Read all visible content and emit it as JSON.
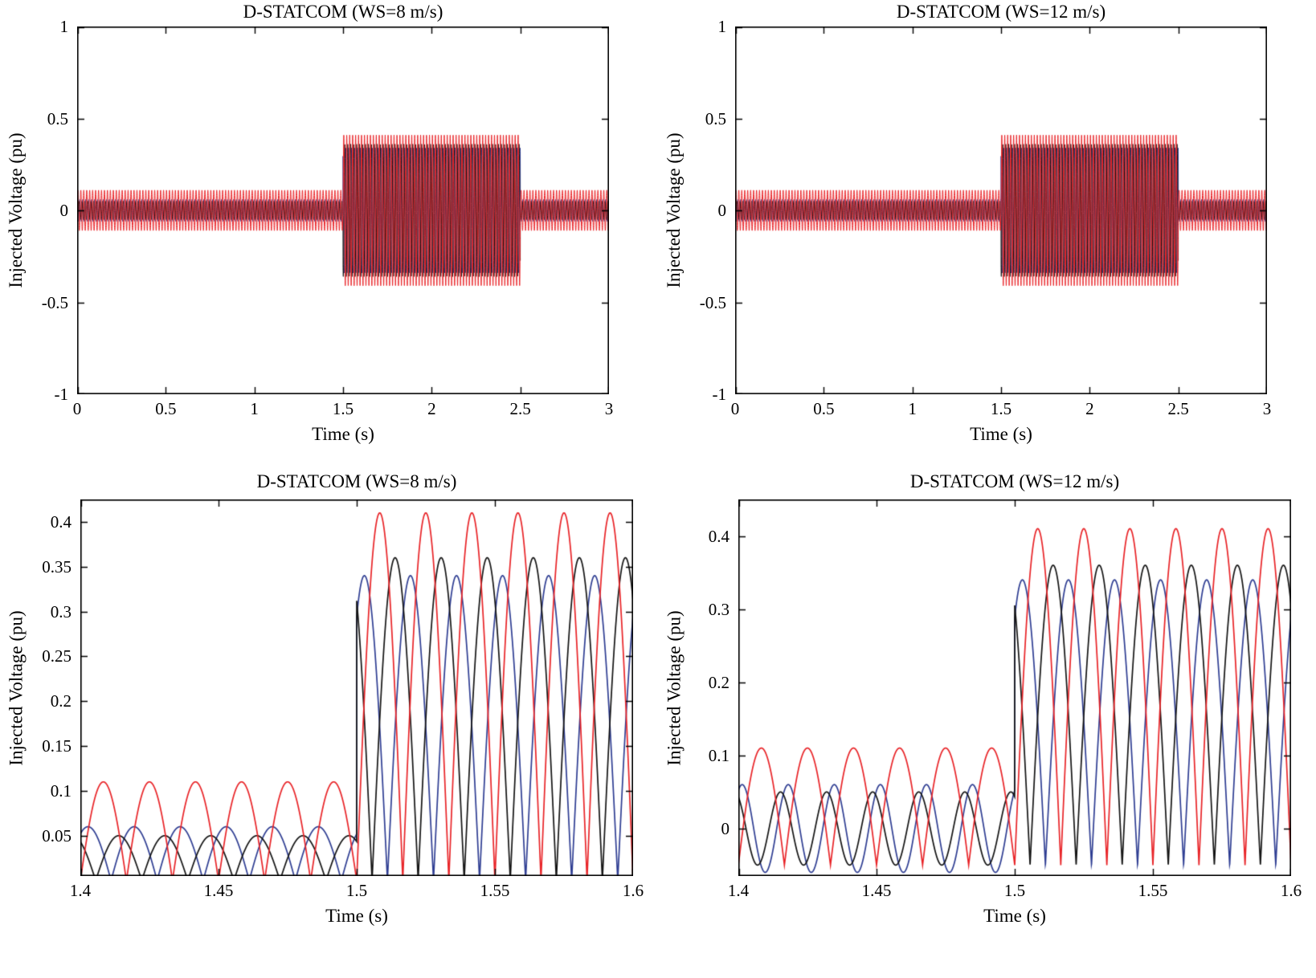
{
  "figure": {
    "background": "#ffffff",
    "text_color": "#000000",
    "frame_color": "#000000"
  },
  "colors": {
    "phase_a_red": "#e82327",
    "phase_b_blue": "#2e3d92",
    "phase_c_black": "#131313"
  },
  "chart_data": [
    {
      "id": "ws8-full",
      "type": "line",
      "title": "D-STATCOM (WS=8 m/s)",
      "xlabel": "Time (s)",
      "ylabel": "Injected Voltage (pu)",
      "xlim": [
        0,
        3
      ],
      "ylim": [
        -1,
        1
      ],
      "xticks": [
        0,
        0.5,
        1,
        1.5,
        2,
        2.5,
        3
      ],
      "xtick_labels": [
        "0",
        "0.5",
        "1",
        "1.5",
        "2",
        "2.5",
        "3"
      ],
      "yticks": [
        -1,
        -0.5,
        0,
        0.5,
        1
      ],
      "ytick_labels": [
        "-1",
        "-0.5",
        "0",
        "0.5",
        "1"
      ],
      "grid": false,
      "legend": null,
      "series": [
        {
          "name": "phase-b-blue",
          "color": "#2e3d92",
          "waveform": "sin",
          "freq": 60,
          "phase": 2.094,
          "line_width": 1,
          "segments": [
            {
              "t0": 0.0,
              "t1": 1.5,
              "amp": 0.06,
              "base": 0
            },
            {
              "t0": 1.5,
              "t1": 2.5,
              "amp": 0.34,
              "base": 0
            },
            {
              "t0": 2.5,
              "t1": 3.001,
              "amp": 0.06,
              "base": 0
            }
          ]
        },
        {
          "name": "phase-c-black",
          "color": "#131313",
          "waveform": "sin",
          "freq": 60,
          "phase": 4.189,
          "line_width": 1,
          "segments": [
            {
              "t0": 0.0,
              "t1": 1.5,
              "amp": 0.05,
              "base": 0
            },
            {
              "t0": 1.5,
              "t1": 2.5,
              "amp": 0.36,
              "base": 0
            },
            {
              "t0": 2.5,
              "t1": 3.001,
              "amp": 0.05,
              "base": 0
            }
          ]
        },
        {
          "name": "phase-a-red",
          "color": "#e82327",
          "waveform": "sin",
          "freq": 60,
          "phase": 0,
          "line_width": 1,
          "segments": [
            {
              "t0": 0.0,
              "t1": 1.5,
              "amp": 0.11,
              "base": 0
            },
            {
              "t0": 1.5,
              "t1": 2.5,
              "amp": 0.41,
              "base": 0
            },
            {
              "t0": 2.5,
              "t1": 3.001,
              "amp": 0.11,
              "base": 0
            }
          ]
        }
      ]
    },
    {
      "id": "ws12-full",
      "type": "line",
      "title": "D-STATCOM (WS=12 m/s)",
      "xlabel": "Time (s)",
      "ylabel": "Injected Voltage (pu)",
      "xlim": [
        0,
        3
      ],
      "ylim": [
        -1,
        1
      ],
      "xticks": [
        0,
        0.5,
        1,
        1.5,
        2,
        2.5,
        3
      ],
      "xtick_labels": [
        "0",
        "0.5",
        "1",
        "1.5",
        "2",
        "2.5",
        "3"
      ],
      "yticks": [
        -1,
        -0.5,
        0,
        0.5,
        1
      ],
      "ytick_labels": [
        "-1",
        "-0.5",
        "0",
        "0.5",
        "1"
      ],
      "grid": false,
      "legend": null,
      "series": [
        {
          "name": "phase-b-blue",
          "color": "#2e3d92",
          "waveform": "sin",
          "freq": 60,
          "phase": 2.094,
          "line_width": 1,
          "segments": [
            {
              "t0": 0.0,
              "t1": 1.5,
              "amp": 0.06,
              "base": 0
            },
            {
              "t0": 1.5,
              "t1": 2.5,
              "amp": 0.34,
              "base": 0
            },
            {
              "t0": 2.5,
              "t1": 3.001,
              "amp": 0.06,
              "base": 0
            }
          ]
        },
        {
          "name": "phase-c-black",
          "color": "#131313",
          "waveform": "sin",
          "freq": 60,
          "phase": 4.189,
          "line_width": 1,
          "segments": [
            {
              "t0": 0.0,
              "t1": 1.5,
              "amp": 0.05,
              "base": 0
            },
            {
              "t0": 1.5,
              "t1": 2.5,
              "amp": 0.36,
              "base": 0
            },
            {
              "t0": 2.5,
              "t1": 3.001,
              "amp": 0.05,
              "base": 0
            }
          ]
        },
        {
          "name": "phase-a-red",
          "color": "#e82327",
          "waveform": "sin",
          "freq": 60,
          "phase": 0,
          "line_width": 1,
          "segments": [
            {
              "t0": 0.0,
              "t1": 1.5,
              "amp": 0.11,
              "base": 0
            },
            {
              "t0": 1.5,
              "t1": 2.5,
              "amp": 0.41,
              "base": 0
            },
            {
              "t0": 2.5,
              "t1": 3.001,
              "amp": 0.11,
              "base": 0
            }
          ]
        }
      ]
    },
    {
      "id": "ws8-zoom",
      "type": "line",
      "title": "D-STATCOM (WS=8 m/s)",
      "xlabel": "Time (s)",
      "ylabel": "Injected Voltage (pu)",
      "xlim": [
        1.4,
        1.6
      ],
      "ylim": [
        0.005,
        0.425
      ],
      "xticks": [
        1.4,
        1.45,
        1.5,
        1.55,
        1.6
      ],
      "xtick_labels": [
        "1.4",
        "1.45",
        "1.5",
        "1.55",
        "1.6"
      ],
      "yticks": [
        0.05,
        0.1,
        0.15,
        0.2,
        0.25,
        0.3,
        0.35,
        0.4
      ],
      "ytick_labels": [
        "0.05",
        "0.1",
        "0.15",
        "0.2",
        "0.25",
        "0.3",
        "0.35",
        "0.4"
      ],
      "grid": false,
      "legend": null,
      "series": [
        {
          "name": "phase-b-blue",
          "color": "#2e3d92",
          "waveform": "abs",
          "freq": 60,
          "phase": 1.047,
          "line_width": 1.7,
          "segments": [
            {
              "t0": 1.4,
              "t1": 1.5,
              "amp": 0.06,
              "base": 0.0
            },
            {
              "t0": 1.5,
              "t1": 1.601,
              "amp": 0.34,
              "base": 0.0
            }
          ]
        },
        {
          "name": "phase-c-black",
          "color": "#131313",
          "waveform": "abs",
          "freq": 60,
          "phase": 2.094,
          "line_width": 1.7,
          "segments": [
            {
              "t0": 1.4,
              "t1": 1.5,
              "amp": 0.05,
              "base": 0.0
            },
            {
              "t0": 1.5,
              "t1": 1.601,
              "amp": 0.36,
              "base": 0.0
            }
          ]
        },
        {
          "name": "phase-a-red",
          "color": "#e82327",
          "waveform": "abs",
          "freq": 60,
          "phase": 0,
          "line_width": 1.7,
          "segments": [
            {
              "t0": 1.4,
              "t1": 1.5,
              "amp": 0.11,
              "base": 0.0
            },
            {
              "t0": 1.5,
              "t1": 1.601,
              "amp": 0.41,
              "base": 0.0
            }
          ]
        }
      ]
    },
    {
      "id": "ws12-zoom",
      "type": "line",
      "title": "D-STATCOM (WS=12 m/s)",
      "xlabel": "Time (s)",
      "ylabel": "Injected Voltage (pu)",
      "xlim": [
        1.4,
        1.6
      ],
      "ylim": [
        -0.065,
        0.45
      ],
      "xticks": [
        1.4,
        1.45,
        1.5,
        1.55,
        1.6
      ],
      "xtick_labels": [
        "1.4",
        "1.45",
        "1.5",
        "1.55",
        "1.6"
      ],
      "yticks": [
        0,
        0.1,
        0.2,
        0.3,
        0.4
      ],
      "ytick_labels": [
        "0",
        "0.1",
        "0.2",
        "0.3",
        "0.4"
      ],
      "grid": false,
      "legend": null,
      "series": [
        {
          "name": "phase-b-blue",
          "color": "#2e3d92",
          "waveform": "abs",
          "freq": 60,
          "phase": 1.047,
          "line_width": 1.7,
          "segments": [
            {
              "t0": 1.4,
              "t1": 1.5,
              "amp": 0.06,
              "base": 0.0,
              "waveform": "sin"
            },
            {
              "t0": 1.5,
              "t1": 1.601,
              "amp": 0.39,
              "base": -0.05
            }
          ]
        },
        {
          "name": "phase-c-black",
          "color": "#131313",
          "waveform": "abs",
          "freq": 60,
          "phase": 2.094,
          "line_width": 1.7,
          "segments": [
            {
              "t0": 1.4,
              "t1": 1.5,
              "amp": 0.05,
              "base": 0.0,
              "waveform": "sin"
            },
            {
              "t0": 1.5,
              "t1": 1.601,
              "amp": 0.41,
              "base": -0.05
            }
          ]
        },
        {
          "name": "phase-a-red",
          "color": "#e82327",
          "waveform": "abs",
          "freq": 60,
          "phase": 0,
          "line_width": 1.7,
          "segments": [
            {
              "t0": 1.4,
              "t1": 1.5,
              "amp": 0.16,
              "base": -0.05
            },
            {
              "t0": 1.5,
              "t1": 1.601,
              "amp": 0.46,
              "base": -0.05
            }
          ]
        }
      ]
    }
  ]
}
